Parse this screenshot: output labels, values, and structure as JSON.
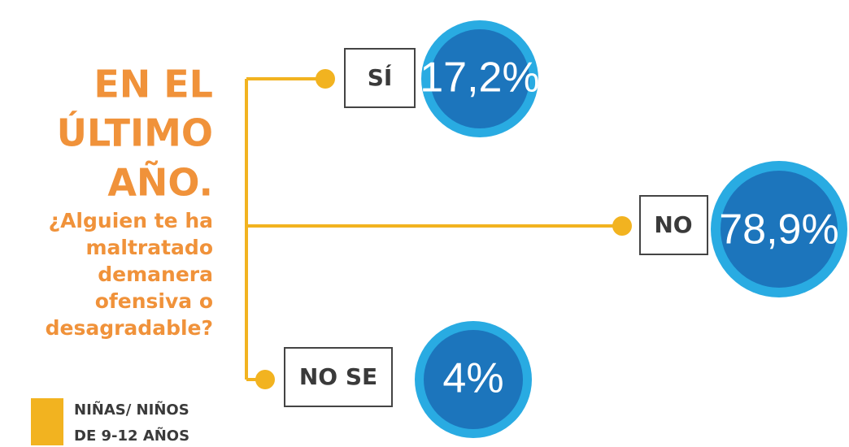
{
  "title": {
    "lines": [
      "EN EL",
      "ÚLTIMO",
      "AÑO."
    ]
  },
  "question": {
    "lines": [
      "¿Alguien te ha",
      "maltratado",
      "demanera",
      "ofensiva o",
      "desagradable?"
    ]
  },
  "legend": {
    "lines": [
      "NIÑAS/ NIÑOS",
      "DE 9-12 AÑOS"
    ]
  },
  "branches": [
    {
      "label": "SÍ",
      "value": "17,2%"
    },
    {
      "label": "NO",
      "value": "78,9%"
    },
    {
      "label": "NO SE",
      "value": "4%"
    }
  ]
}
